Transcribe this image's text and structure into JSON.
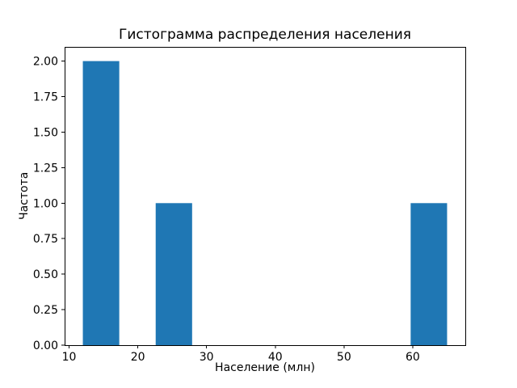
{
  "figure": {
    "background": "#ffffff",
    "bar_color": "#1f77b4",
    "axis_color": "#000000",
    "tick_label_color": "#000000"
  },
  "chart_data": {
    "type": "bar",
    "subtype": "histogram",
    "title": "Гистограмма распределения населения",
    "xlabel": "Население (млн)",
    "ylabel": "Частота",
    "bars": [
      {
        "x0": 12.0,
        "x1": 17.3,
        "height": 2
      },
      {
        "x0": 22.6,
        "x1": 27.9,
        "height": 1
      },
      {
        "x0": 59.7,
        "x1": 65.0,
        "height": 1
      }
    ],
    "bin_width": 5.3,
    "xlim": [
      9.35,
      67.65
    ],
    "ylim": [
      0,
      2.1
    ],
    "x_ticks": [
      10,
      20,
      30,
      40,
      50,
      60
    ],
    "x_tick_labels": [
      "10",
      "20",
      "30",
      "40",
      "50",
      "60"
    ],
    "y_ticks": [
      0.0,
      0.25,
      0.5,
      0.75,
      1.0,
      1.25,
      1.5,
      1.75,
      2.0
    ],
    "y_tick_labels": [
      "0.00",
      "0.25",
      "0.50",
      "0.75",
      "1.00",
      "1.25",
      "1.50",
      "1.75",
      "2.00"
    ],
    "grid": false,
    "legend": null
  }
}
